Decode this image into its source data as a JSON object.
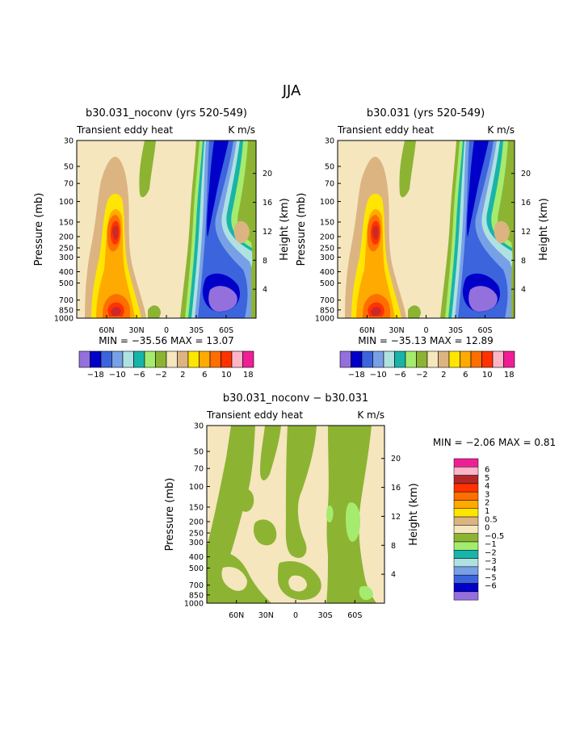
{
  "page_title": "JJA",
  "contour_colors": {
    "levels_panel": [
      "#9470dc",
      "#0000c8",
      "#3c64dc",
      "#78a0e6",
      "#afe1e1",
      "#18b4aa",
      "#a5eb6e",
      "#8cb432",
      "#f5e6be",
      "#dcb482",
      "#ffe600",
      "#ffaa00",
      "#ff6e00",
      "#ff3200",
      "#ffb4c8",
      "#f01e96"
    ],
    "diff_levels": [
      "#f01e96",
      "#ffb4c8",
      "#b42828",
      "#ff3200",
      "#ff6e00",
      "#ffaa00",
      "#ffe600",
      "#dcb482",
      "#f5e6be",
      "#8cb432",
      "#a5eb6e",
      "#18b4aa",
      "#afe1e1",
      "#78a0e6",
      "#3c64dc",
      "#0000c8",
      "#9470dc"
    ],
    "positive_core": "#cd2828",
    "negative_core": "#9470dc"
  },
  "axes": {
    "left_label": "Pressure (mb)",
    "right_label": "Height (km)",
    "pressure_ticks": [
      "30",
      "50",
      "70",
      "100",
      "150",
      "200",
      "250",
      "300",
      "400",
      "500",
      "700",
      "850",
      "1000"
    ],
    "height_ticks": [
      "20",
      "16",
      "12",
      "8",
      "4"
    ],
    "lat_ticks": [
      "60N",
      "30N",
      "0",
      "30S",
      "60S"
    ]
  },
  "panel1": {
    "title": "b30.031_noconv (yrs 520-549)",
    "subtitle": "Transient eddy heat",
    "units": "K m/s",
    "stats": "MIN = −35.56   MAX =   13.07"
  },
  "panel2": {
    "title": "b30.031 (yrs 520-549)",
    "subtitle": "Transient eddy heat",
    "units": "K m/s",
    "stats": "MIN = −35.13   MAX =   12.89"
  },
  "panel3": {
    "title": "b30.031_noconv − b30.031",
    "subtitle": "Transient eddy heat",
    "units": "K m/s",
    "stats": "MIN =   −2.06   MAX =    0.81"
  },
  "colorbar_small_labels": [
    "−18",
    "−10",
    "−6",
    "−2",
    "2",
    "6",
    "10",
    "18"
  ],
  "colorbar_diff_labels": [
    "6",
    "5",
    "4",
    "3",
    "2",
    "1",
    "0.5",
    "0",
    "−0.5",
    "−1",
    "−2",
    "−3",
    "−4",
    "−5",
    "−6"
  ],
  "chart_data": [
    {
      "type": "heatmap",
      "title": "b30.031_noconv (yrs 520-549)",
      "subtitle": "Transient eddy heat",
      "units": "K m/s",
      "xlabel": "",
      "ylabel": "Pressure (mb)",
      "ylabel_right": "Height (km)",
      "x_ticks": [
        "60N",
        "30N",
        "0",
        "30S",
        "60S"
      ],
      "y_ticks": [
        30,
        50,
        70,
        100,
        150,
        200,
        250,
        300,
        400,
        500,
        700,
        850,
        1000
      ],
      "y_scale": "log",
      "min": -35.56,
      "max": 13.07,
      "contour_levels": [
        -18,
        -14,
        -10,
        -8,
        -6,
        -4,
        -2,
        0,
        2,
        4,
        6,
        8,
        10,
        14,
        18
      ]
    },
    {
      "type": "heatmap",
      "title": "b30.031 (yrs 520-549)",
      "subtitle": "Transient eddy heat",
      "units": "K m/s",
      "xlabel": "",
      "ylabel": "Pressure (mb)",
      "ylabel_right": "Height (km)",
      "x_ticks": [
        "60N",
        "30N",
        "0",
        "30S",
        "60S"
      ],
      "y_ticks": [
        30,
        50,
        70,
        100,
        150,
        200,
        250,
        300,
        400,
        500,
        700,
        850,
        1000
      ],
      "y_scale": "log",
      "min": -35.13,
      "max": 12.89,
      "contour_levels": [
        -18,
        -14,
        -10,
        -8,
        -6,
        -4,
        -2,
        0,
        2,
        4,
        6,
        8,
        10,
        14,
        18
      ]
    },
    {
      "type": "heatmap",
      "title": "b30.031_noconv − b30.031",
      "subtitle": "Transient eddy heat",
      "units": "K m/s",
      "xlabel": "",
      "ylabel": "Pressure (mb)",
      "ylabel_right": "Height (km)",
      "x_ticks": [
        "60N",
        "30N",
        "0",
        "30S",
        "60S"
      ],
      "y_ticks": [
        30,
        50,
        70,
        100,
        150,
        200,
        250,
        300,
        400,
        500,
        700,
        850,
        1000
      ],
      "y_scale": "log",
      "min": -2.06,
      "max": 0.81,
      "contour_levels": [
        -6,
        -5,
        -4,
        -3,
        -2,
        -1,
        -0.5,
        0,
        0.5,
        1,
        2,
        3,
        4,
        5,
        6
      ]
    }
  ]
}
